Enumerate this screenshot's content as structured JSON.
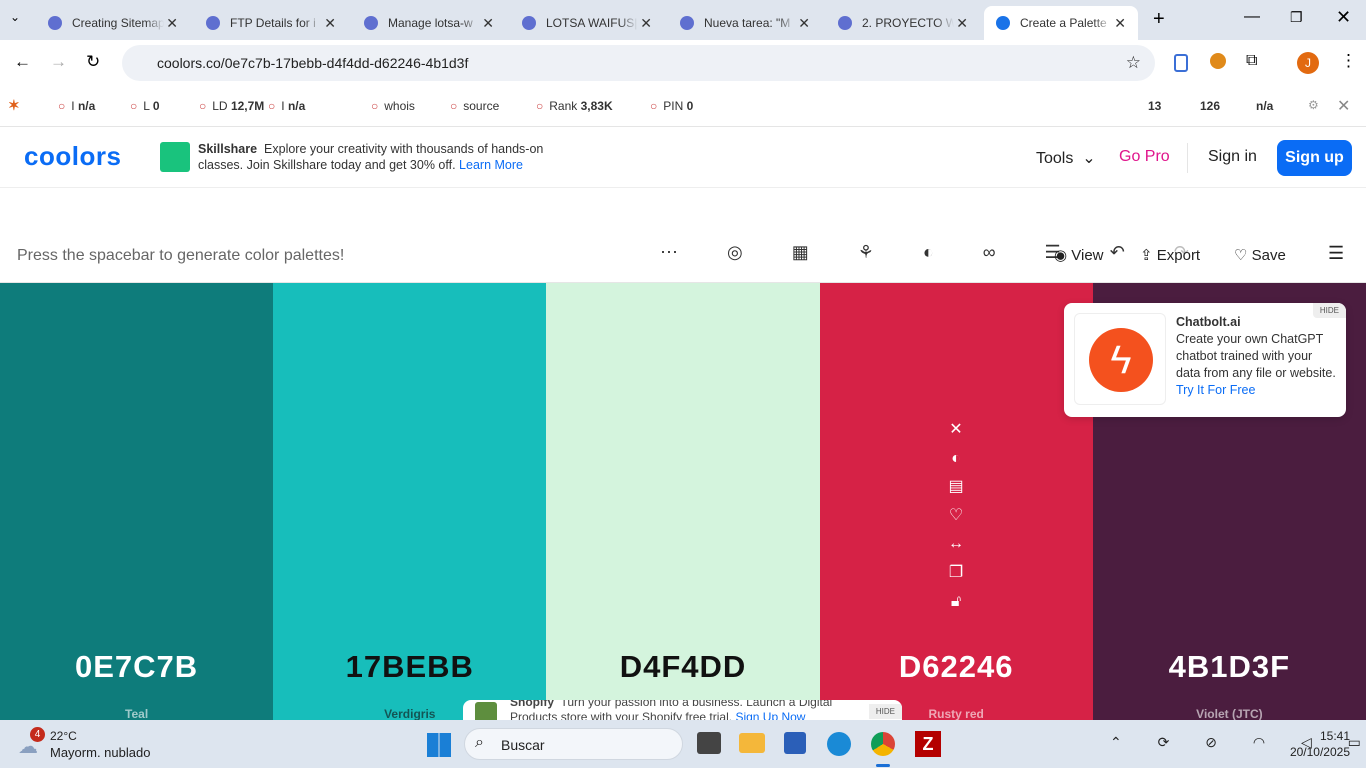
{
  "browser": {
    "tabs": [
      {
        "title": "Creating Sitemap",
        "active": false
      },
      {
        "title": "FTP Details for i",
        "active": false
      },
      {
        "title": "Manage lotsa-w",
        "active": false
      },
      {
        "title": "LOTSA WAIFUS|2",
        "active": false
      },
      {
        "title": "Nueva tarea: \"M",
        "active": false
      },
      {
        "title": "2. PROYECTO W",
        "active": false
      },
      {
        "title": "Create a Palette",
        "active": true
      }
    ],
    "url": "coolors.co/0e7c7b-17bebb-d4f4dd-d62246-4b1d3f",
    "profile_initial": "J"
  },
  "seo_bar": {
    "items": [
      {
        "label": "I",
        "value": "n/a"
      },
      {
        "label": "L",
        "value": 0
      },
      {
        "label": "LD",
        "value": "12,7M"
      },
      {
        "label": "I",
        "value": "n/a"
      },
      {
        "label": "whois"
      },
      {
        "label": "source"
      },
      {
        "label": "Rank",
        "value": "3,83K"
      },
      {
        "label": "PIN",
        "value": 0
      }
    ],
    "right_values": [
      13,
      126,
      "n/a"
    ]
  },
  "site_header": {
    "logo": "coolors",
    "ad": {
      "brand": "Skillshare",
      "text": "Explore your creativity with thousands of hands-on classes. Join Skillshare today and get 30% off.",
      "link": "Learn More"
    },
    "nav": {
      "tools": "Tools",
      "go_pro": "Go Pro",
      "sign_in": "Sign in",
      "sign_up": "Sign up"
    }
  },
  "toolbar": {
    "hint": "Press the spacebar to generate color palettes!",
    "view": "View",
    "export": "Export",
    "save": "Save"
  },
  "palette": [
    {
      "hex": "0E7C7B",
      "name": "Teal",
      "color": "#0e7c7b",
      "text_color": "#ffffff"
    },
    {
      "hex": "17BEBB",
      "name": "Verdigris",
      "color": "#17bebb",
      "text_color": "#111111"
    },
    {
      "hex": "D4F4DD",
      "name": "D4F4DD",
      "color": "#d4f4dd",
      "text_color": "#111111"
    },
    {
      "hex": "D62246",
      "name": "Rusty red",
      "color": "#d62246",
      "text_color": "#ffffff"
    },
    {
      "hex": "4B1D3F",
      "name": "Violet (JTC)",
      "color": "#4b1d3f",
      "text_color": "#ffffff"
    }
  ],
  "chatbot_ad": {
    "hide": "HIDE",
    "brand": "Chatbolt.ai",
    "text": "Create your own ChatGPT chatbot trained with your data from any file or website.",
    "link": "Try It For Free"
  },
  "bottom_ad": {
    "brand": "Shopify",
    "text": "Turn your passion into a business. Launch a Digital Products store with your Shopify free trial.",
    "link": "Sign Up Now",
    "hide": "HIDE"
  },
  "taskbar": {
    "weather_badge": 4,
    "temperature": "22°C",
    "condition": "Mayorm. nublado",
    "search": "Buscar",
    "time": "15:41",
    "date": "20/10/2025"
  }
}
